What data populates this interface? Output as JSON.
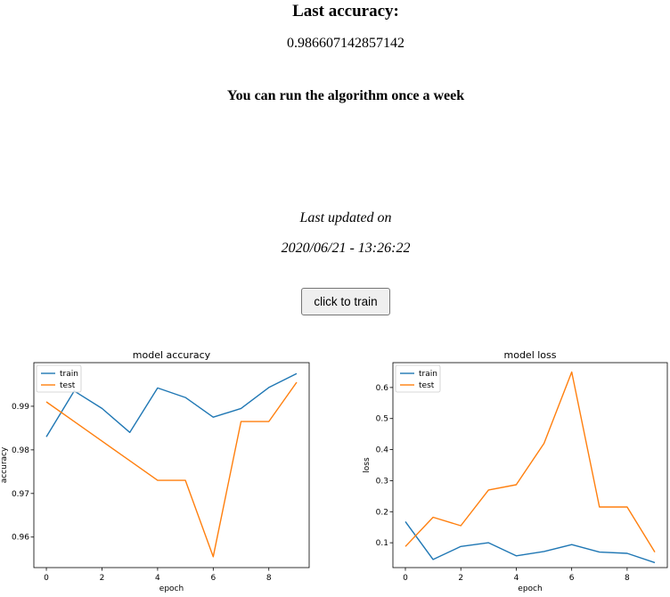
{
  "header": {
    "title": "Last accuracy:",
    "accuracy_value": "0.986607142857142",
    "run_note": "You can run the algorithm once a week"
  },
  "update": {
    "label": "Last updated on",
    "timestamp": "2020/06/21 - 13:26:22"
  },
  "actions": {
    "train_button": "click to train"
  },
  "colors": {
    "train": "#1f77b4",
    "test": "#ff7f0e"
  },
  "chart_data": [
    {
      "type": "line",
      "title": "model accuracy",
      "xlabel": "epoch",
      "ylabel": "accuracy",
      "xlim": [
        -0.45,
        9.45
      ],
      "ylim": [
        0.953,
        1.0
      ],
      "x_ticks": [
        0,
        2,
        4,
        6,
        8
      ],
      "x_tick_labels": [
        "0",
        "2",
        "4",
        "6",
        "8"
      ],
      "y_ticks": [
        0.96,
        0.97,
        0.98,
        0.99
      ],
      "y_tick_labels": [
        "0.96",
        "0.97",
        "0.98",
        "0.99"
      ],
      "legend_position": "top-left",
      "x": [
        0,
        1,
        2,
        3,
        4,
        5,
        6,
        7,
        8,
        9
      ],
      "series": [
        {
          "name": "train",
          "values": [
            0.983,
            0.9935,
            0.9895,
            0.984,
            0.9942,
            0.992,
            0.9875,
            0.9895,
            0.9943,
            0.9975
          ]
        },
        {
          "name": "test",
          "values": [
            0.991,
            0.9865,
            0.982,
            0.9775,
            0.973,
            0.973,
            0.9555,
            0.9865,
            0.9865,
            0.9955
          ]
        }
      ]
    },
    {
      "type": "line",
      "title": "model loss",
      "xlabel": "epoch",
      "ylabel": "loss",
      "xlim": [
        -0.45,
        9.45
      ],
      "ylim": [
        0.02,
        0.68
      ],
      "x_ticks": [
        0,
        2,
        4,
        6,
        8
      ],
      "x_tick_labels": [
        "0",
        "2",
        "4",
        "6",
        "8"
      ],
      "y_ticks": [
        0.1,
        0.2,
        0.3,
        0.4,
        0.5,
        0.6
      ],
      "y_tick_labels": [
        "0.1",
        "0.2",
        "0.3",
        "0.4",
        "0.5",
        "0.6"
      ],
      "legend_position": "top-left",
      "x": [
        0,
        1,
        2,
        3,
        4,
        5,
        6,
        7,
        8,
        9
      ],
      "series": [
        {
          "name": "train",
          "values": [
            0.168,
            0.046,
            0.088,
            0.1,
            0.058,
            0.072,
            0.094,
            0.07,
            0.066,
            0.036
          ]
        },
        {
          "name": "test",
          "values": [
            0.088,
            0.182,
            0.155,
            0.27,
            0.287,
            0.42,
            0.65,
            0.215,
            0.215,
            0.07
          ]
        }
      ]
    }
  ]
}
